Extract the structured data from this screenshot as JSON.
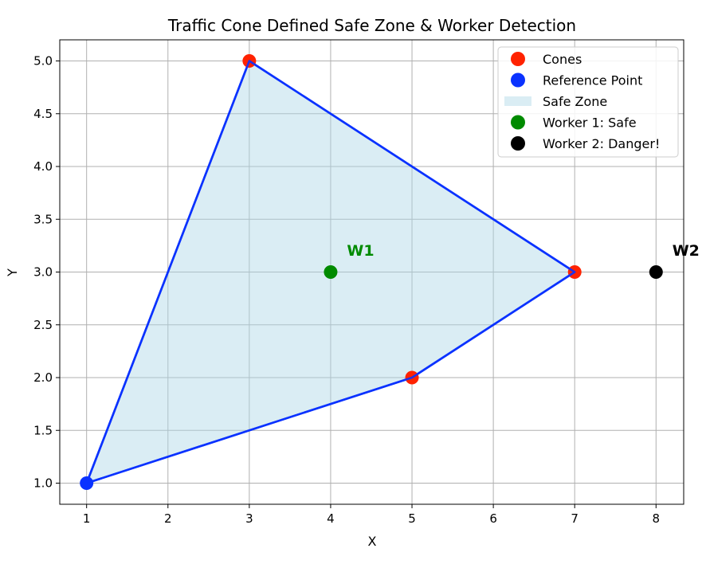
{
  "chart_data": {
    "type": "scatter",
    "title": "Traffic Cone Defined Safe Zone & Worker Detection",
    "xlabel": "X",
    "ylabel": "Y",
    "xlim": [
      0.67,
      8.34
    ],
    "ylim": [
      0.8,
      5.2
    ],
    "xticks": [
      1,
      2,
      3,
      4,
      5,
      6,
      7,
      8
    ],
    "yticks": [
      1.0,
      1.5,
      2.0,
      2.5,
      3.0,
      3.5,
      4.0,
      4.5,
      5.0
    ],
    "grid": true,
    "legend_position": "top-right",
    "safe_zone": {
      "name": "Safe Zone",
      "polygon": [
        [
          1,
          1
        ],
        [
          3,
          5
        ],
        [
          7,
          3
        ],
        [
          5,
          2
        ]
      ],
      "fill": "#add8e6",
      "edge": "#0a32ff"
    },
    "series": [
      {
        "name": "Cones",
        "color": "#ff2200",
        "points": [
          [
            3,
            5
          ],
          [
            7,
            3
          ],
          [
            5,
            2
          ]
        ]
      },
      {
        "name": "Reference Point",
        "color": "#0a32ff",
        "points": [
          [
            1,
            1
          ]
        ]
      },
      {
        "name": "Worker 1: Safe",
        "color": "#008b00",
        "points": [
          [
            4,
            3
          ]
        ]
      },
      {
        "name": "Worker 2: Danger!",
        "color": "#000000",
        "points": [
          [
            8,
            3
          ]
        ]
      }
    ],
    "annotations": [
      {
        "text": "W1",
        "x": 4.2,
        "y": 3.2,
        "color": "#008b00"
      },
      {
        "text": "W2",
        "x": 8.2,
        "y": 3.2,
        "color": "#000000"
      }
    ],
    "legend_order": [
      "Cones",
      "Reference Point",
      "Safe Zone",
      "Worker 1: Safe",
      "Worker 2: Danger!"
    ]
  }
}
